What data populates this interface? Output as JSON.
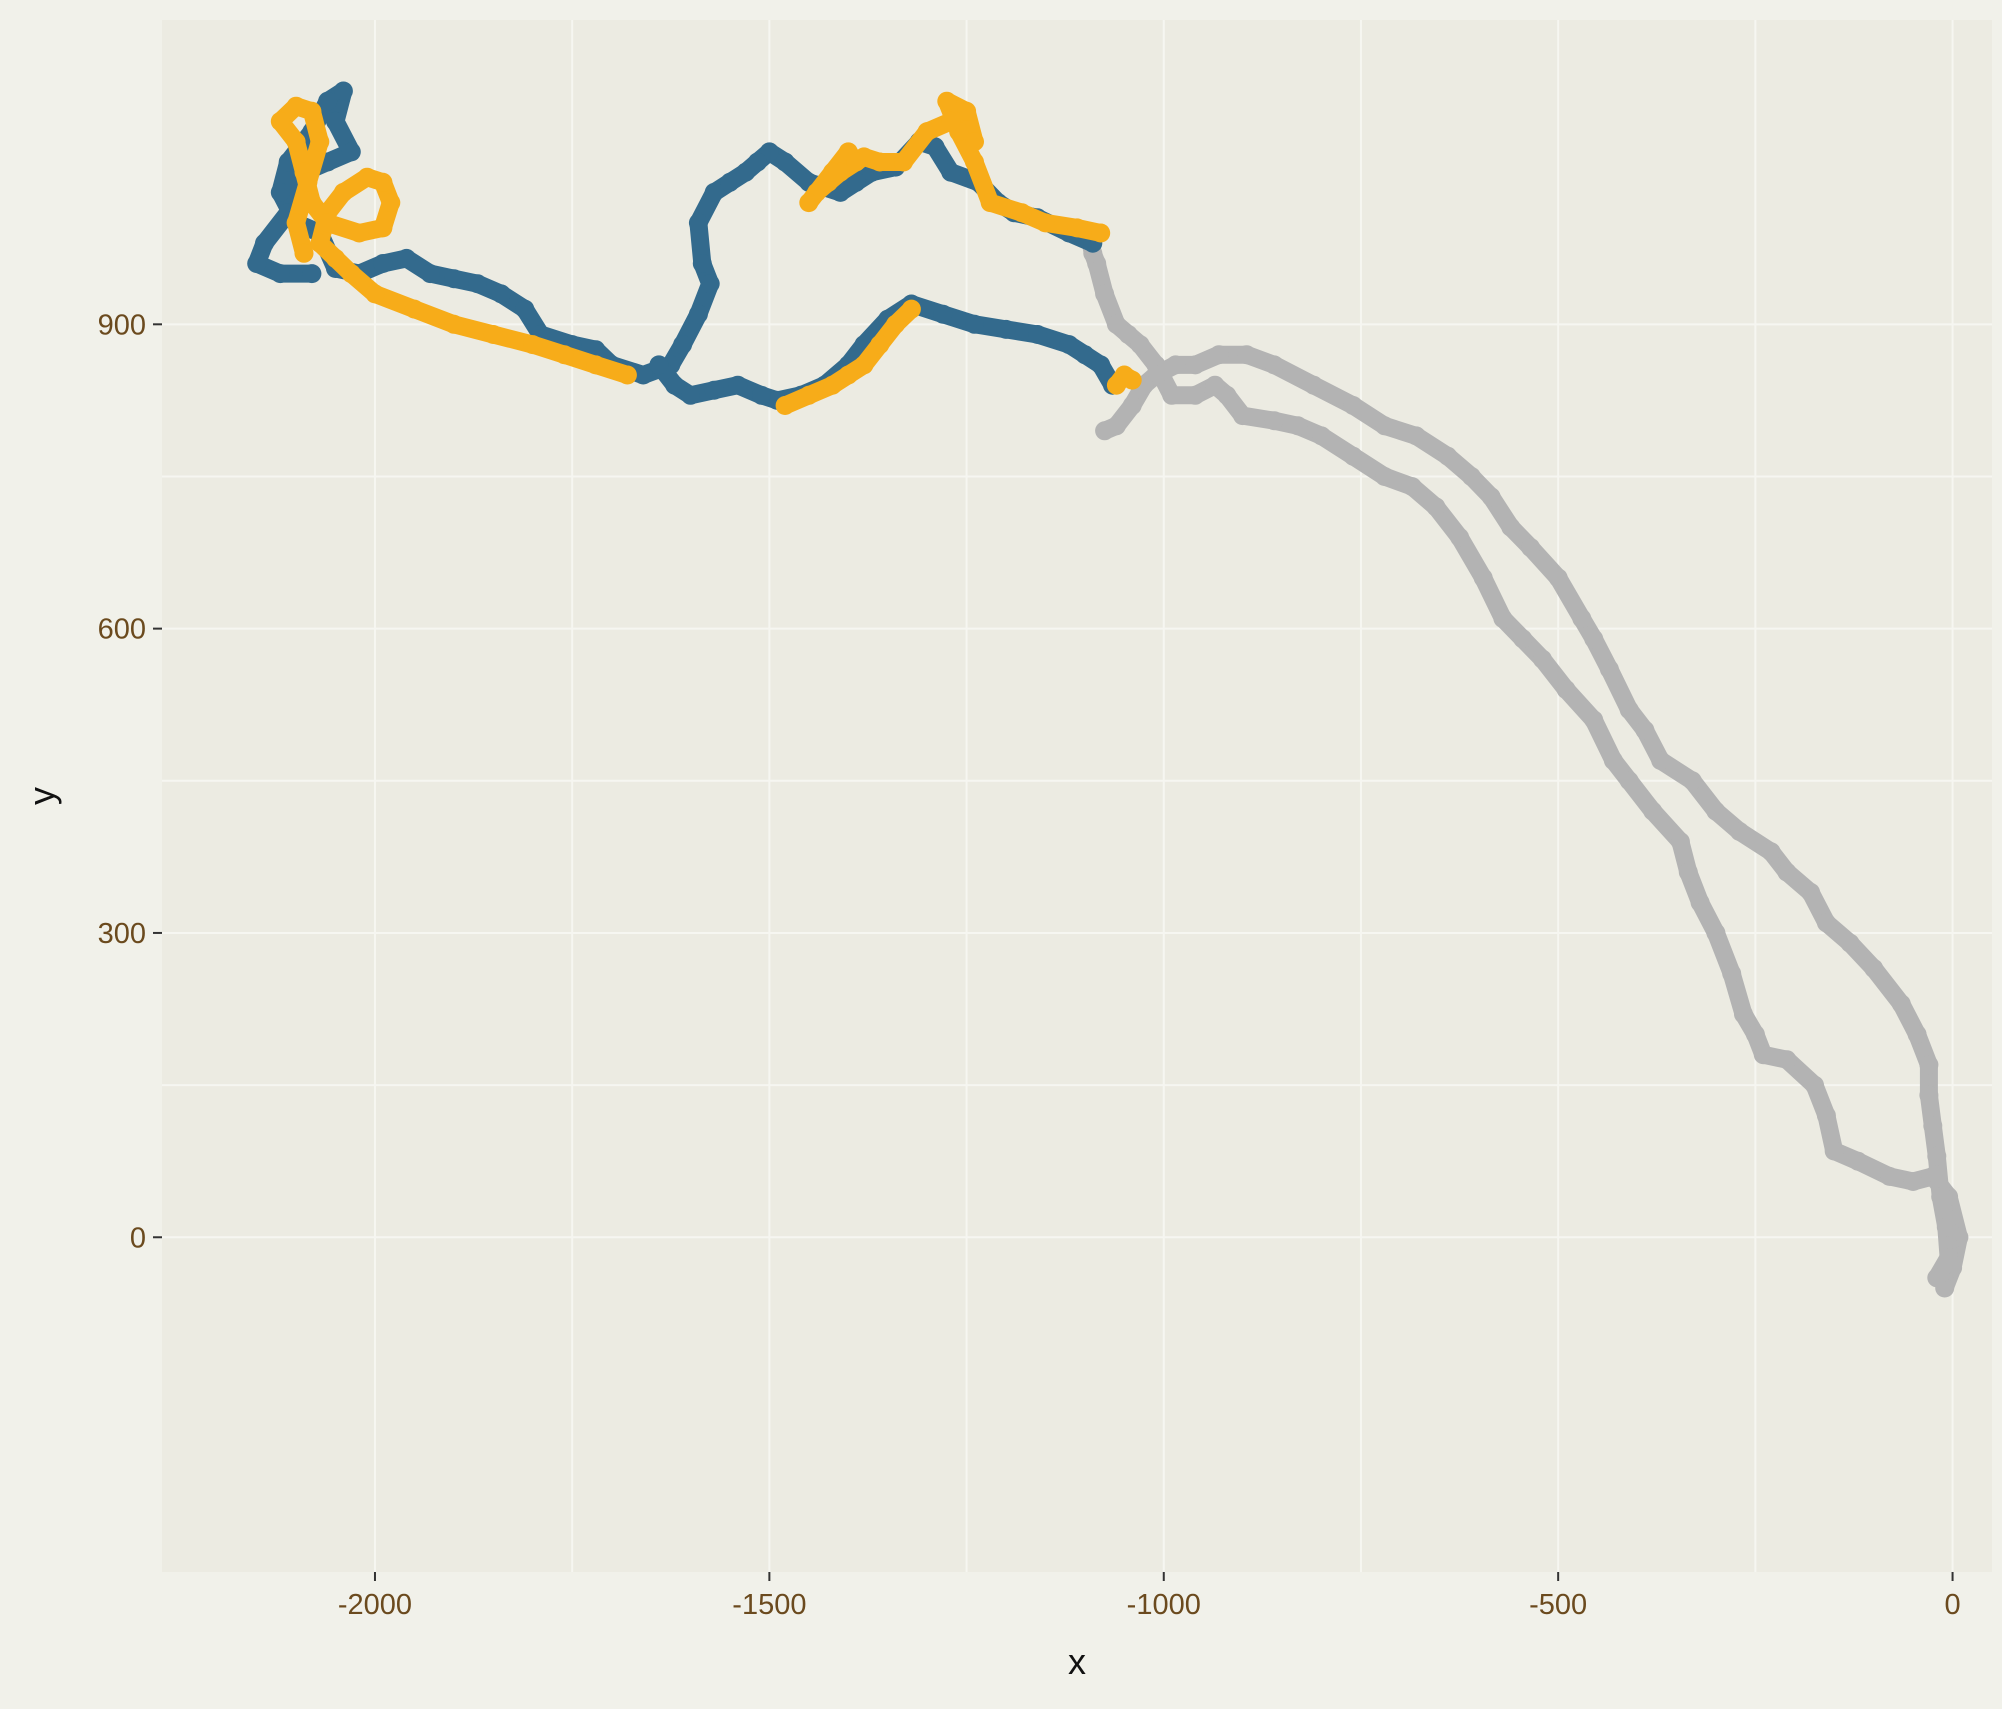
{
  "chart_data": {
    "type": "scatter",
    "title": "",
    "xlabel": "x",
    "ylabel": "y",
    "xlim": [
      -2270,
      50
    ],
    "ylim": [
      -330,
      1200
    ],
    "x_ticks": [
      -2000,
      -1500,
      -1000,
      -500,
      0
    ],
    "y_ticks": [
      0,
      300,
      600,
      900
    ],
    "x_tick_labels": [
      "-2000",
      "-1500",
      "-1000",
      "-500",
      "0"
    ],
    "y_tick_labels": [
      "0",
      "300",
      "600",
      "900"
    ],
    "grid": true,
    "legend": "none",
    "colors": {
      "panel": "#ecebe2",
      "background": "#f1f1ea",
      "gridline": "#f6f6f1",
      "series_a": "#b3b3b3",
      "series_b": "#336a8d",
      "series_c": "#f7ac19",
      "tick": "#6b4a1e"
    },
    "series": [
      {
        "color": "#b3b3b3",
        "points": [
          [
            -10,
            -50
          ],
          [
            0,
            -30
          ],
          [
            8,
            0
          ],
          [
            -5,
            40
          ],
          [
            -25,
            60
          ],
          [
            -50,
            55
          ],
          [
            -80,
            60
          ],
          [
            -120,
            75
          ],
          [
            -150,
            85
          ],
          [
            -160,
            120
          ],
          [
            -175,
            150
          ],
          [
            -210,
            175
          ],
          [
            -240,
            180
          ],
          [
            -250,
            200
          ],
          [
            -265,
            220
          ],
          [
            -280,
            260
          ],
          [
            -300,
            300
          ],
          [
            -320,
            330
          ],
          [
            -335,
            360
          ],
          [
            -345,
            390
          ],
          [
            -380,
            420
          ],
          [
            -410,
            450
          ],
          [
            -430,
            470
          ],
          [
            -455,
            510
          ],
          [
            -490,
            540
          ],
          [
            -520,
            570
          ],
          [
            -545,
            590
          ],
          [
            -570,
            610
          ],
          [
            -595,
            650
          ],
          [
            -625,
            690
          ],
          [
            -655,
            720
          ],
          [
            -685,
            740
          ],
          [
            -720,
            750
          ],
          [
            -760,
            770
          ],
          [
            -800,
            790
          ],
          [
            -830,
            800
          ],
          [
            -860,
            805
          ],
          [
            -900,
            810
          ],
          [
            -920,
            830
          ],
          [
            -935,
            840
          ],
          [
            -960,
            830
          ],
          [
            -990,
            830
          ],
          [
            -1010,
            860
          ],
          [
            -1030,
            880
          ],
          [
            -1045,
            890
          ],
          [
            -1060,
            900
          ],
          [
            -1075,
            930
          ],
          [
            -1085,
            960
          ],
          [
            -1090,
            970
          ],
          [
            -1095,
            990
          ]
        ]
      },
      {
        "color": "#b3b3b3",
        "points": [
          [
            -20,
            -40
          ],
          [
            -5,
            -20
          ],
          [
            -8,
            10
          ],
          [
            -15,
            40
          ],
          [
            -20,
            80
          ],
          [
            -25,
            110
          ],
          [
            -30,
            140
          ],
          [
            -30,
            170
          ],
          [
            -45,
            200
          ],
          [
            -65,
            230
          ],
          [
            -100,
            265
          ],
          [
            -130,
            290
          ],
          [
            -160,
            310
          ],
          [
            -180,
            340
          ],
          [
            -210,
            360
          ],
          [
            -230,
            380
          ],
          [
            -270,
            400
          ],
          [
            -300,
            420
          ],
          [
            -330,
            450
          ],
          [
            -370,
            470
          ],
          [
            -390,
            500
          ],
          [
            -410,
            520
          ],
          [
            -435,
            560
          ],
          [
            -455,
            590
          ],
          [
            -470,
            610
          ],
          [
            -500,
            650
          ],
          [
            -535,
            680
          ],
          [
            -560,
            700
          ],
          [
            -585,
            730
          ],
          [
            -610,
            750
          ],
          [
            -640,
            770
          ],
          [
            -680,
            790
          ],
          [
            -720,
            800
          ],
          [
            -760,
            820
          ],
          [
            -810,
            840
          ],
          [
            -860,
            860
          ],
          [
            -895,
            870
          ],
          [
            -930,
            870
          ],
          [
            -960,
            860
          ],
          [
            -985,
            860
          ],
          [
            -1010,
            850
          ],
          [
            -1025,
            840
          ],
          [
            -1040,
            820
          ],
          [
            -1060,
            800
          ],
          [
            -1075,
            795
          ]
        ]
      },
      {
        "color": "#336a8d",
        "points": [
          [
            -1090,
            980
          ],
          [
            -1120,
            990
          ],
          [
            -1160,
            1005
          ],
          [
            -1190,
            1010
          ],
          [
            -1210,
            1020
          ],
          [
            -1235,
            1040
          ],
          [
            -1270,
            1050
          ],
          [
            -1290,
            1075
          ],
          [
            -1310,
            1080
          ],
          [
            -1340,
            1055
          ],
          [
            -1370,
            1050
          ],
          [
            -1390,
            1040
          ],
          [
            -1410,
            1030
          ],
          [
            -1450,
            1040
          ],
          [
            -1480,
            1060
          ],
          [
            -1500,
            1070
          ],
          [
            -1515,
            1060
          ],
          [
            -1530,
            1050
          ],
          [
            -1550,
            1040
          ],
          [
            -1570,
            1030
          ],
          [
            -1590,
            1000
          ],
          [
            -1585,
            960
          ],
          [
            -1575,
            940
          ],
          [
            -1590,
            910
          ],
          [
            -1610,
            880
          ],
          [
            -1625,
            860
          ],
          [
            -1660,
            850
          ],
          [
            -1700,
            860
          ],
          [
            -1720,
            875
          ],
          [
            -1750,
            880
          ],
          [
            -1790,
            890
          ],
          [
            -1810,
            915
          ],
          [
            -1840,
            930
          ],
          [
            -1870,
            940
          ],
          [
            -1900,
            945
          ],
          [
            -1930,
            950
          ],
          [
            -1960,
            965
          ],
          [
            -1990,
            960
          ],
          [
            -2020,
            950
          ],
          [
            -2050,
            955
          ],
          [
            -2070,
            990
          ],
          [
            -2100,
            1000
          ],
          [
            -2120,
            1030
          ],
          [
            -2110,
            1060
          ],
          [
            -2080,
            1090
          ],
          [
            -2060,
            1120
          ],
          [
            -2040,
            1130
          ],
          [
            -2050,
            1100
          ],
          [
            -2030,
            1070
          ],
          [
            -2060,
            1060
          ],
          [
            -2090,
            1050
          ],
          [
            -2110,
            1010
          ],
          [
            -2140,
            980
          ],
          [
            -2150,
            960
          ],
          [
            -2120,
            950
          ],
          [
            -2080,
            950
          ]
        ]
      },
      {
        "color": "#336a8d",
        "points": [
          [
            -1065,
            840
          ],
          [
            -1080,
            860
          ],
          [
            -1100,
            870
          ],
          [
            -1120,
            880
          ],
          [
            -1160,
            890
          ],
          [
            -1200,
            895
          ],
          [
            -1240,
            900
          ],
          [
            -1280,
            910
          ],
          [
            -1320,
            920
          ],
          [
            -1350,
            905
          ],
          [
            -1380,
            880
          ],
          [
            -1400,
            860
          ],
          [
            -1430,
            840
          ],
          [
            -1460,
            830
          ],
          [
            -1490,
            825
          ],
          [
            -1510,
            830
          ],
          [
            -1540,
            840
          ],
          [
            -1570,
            835
          ],
          [
            -1600,
            830
          ],
          [
            -1620,
            840
          ],
          [
            -1640,
            860
          ]
        ]
      },
      {
        "color": "#f7ac19",
        "points": [
          [
            -1080,
            990
          ],
          [
            -1110,
            995
          ],
          [
            -1150,
            1000
          ],
          [
            -1180,
            1010
          ],
          [
            -1220,
            1020
          ],
          [
            -1240,
            1060
          ],
          [
            -1260,
            1090
          ],
          [
            -1275,
            1120
          ],
          [
            -1250,
            1110
          ],
          [
            -1240,
            1080
          ],
          [
            -1270,
            1100
          ],
          [
            -1300,
            1090
          ],
          [
            -1330,
            1060
          ],
          [
            -1360,
            1060
          ],
          [
            -1380,
            1065
          ],
          [
            -1410,
            1050
          ],
          [
            -1425,
            1040
          ],
          [
            -1440,
            1030
          ],
          [
            -1450,
            1020
          ],
          [
            -1420,
            1050
          ],
          [
            -1400,
            1070
          ],
          [
            -1390,
            1060
          ]
        ]
      },
      {
        "color": "#f7ac19",
        "points": [
          [
            -1320,
            915
          ],
          [
            -1340,
            900
          ],
          [
            -1360,
            880
          ],
          [
            -1380,
            860
          ],
          [
            -1400,
            850
          ],
          [
            -1420,
            840
          ],
          [
            -1450,
            830
          ],
          [
            -1480,
            820
          ]
        ]
      },
      {
        "color": "#f7ac19",
        "points": [
          [
            -1680,
            850
          ],
          [
            -1720,
            860
          ],
          [
            -1760,
            870
          ],
          [
            -1800,
            880
          ],
          [
            -1850,
            890
          ],
          [
            -1900,
            900
          ],
          [
            -1950,
            915
          ],
          [
            -2000,
            930
          ],
          [
            -2030,
            950
          ],
          [
            -2050,
            965
          ],
          [
            -2070,
            980
          ],
          [
            -2060,
            1010
          ],
          [
            -2040,
            1030
          ],
          [
            -2010,
            1045
          ],
          [
            -1990,
            1040
          ],
          [
            -1980,
            1020
          ],
          [
            -1990,
            995
          ],
          [
            -2020,
            990
          ],
          [
            -2060,
            1000
          ],
          [
            -2080,
            1020
          ],
          [
            -2090,
            1050
          ],
          [
            -2100,
            1080
          ],
          [
            -2120,
            1100
          ],
          [
            -2100,
            1115
          ],
          [
            -2080,
            1110
          ],
          [
            -2070,
            1080
          ],
          [
            -2085,
            1040
          ],
          [
            -2100,
            1000
          ],
          [
            -2090,
            970
          ]
        ]
      },
      {
        "color": "#f7ac19",
        "points": [
          [
            -1060,
            840
          ],
          [
            -1050,
            850
          ],
          [
            -1040,
            845
          ]
        ]
      }
    ]
  }
}
